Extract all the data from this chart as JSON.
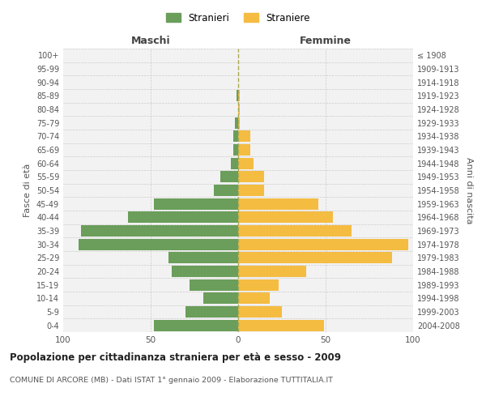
{
  "age_groups": [
    "0-4",
    "5-9",
    "10-14",
    "15-19",
    "20-24",
    "25-29",
    "30-34",
    "35-39",
    "40-44",
    "45-49",
    "50-54",
    "55-59",
    "60-64",
    "65-69",
    "70-74",
    "75-79",
    "80-84",
    "85-89",
    "90-94",
    "95-99",
    "100+"
  ],
  "birth_years": [
    "2004-2008",
    "1999-2003",
    "1994-1998",
    "1989-1993",
    "1984-1988",
    "1979-1983",
    "1974-1978",
    "1969-1973",
    "1964-1968",
    "1959-1963",
    "1954-1958",
    "1949-1953",
    "1944-1948",
    "1939-1943",
    "1934-1938",
    "1929-1933",
    "1924-1928",
    "1919-1923",
    "1914-1918",
    "1909-1913",
    "≤ 1908"
  ],
  "males": [
    48,
    30,
    20,
    28,
    38,
    40,
    91,
    90,
    63,
    48,
    14,
    10,
    4,
    3,
    3,
    2,
    0,
    1,
    0,
    0,
    0
  ],
  "females": [
    49,
    25,
    18,
    23,
    39,
    88,
    97,
    65,
    54,
    46,
    15,
    15,
    9,
    7,
    7,
    1,
    1,
    1,
    0,
    0,
    0
  ],
  "male_color": "#6a9e5a",
  "female_color": "#f5bc42",
  "background_color": "#f2f2f2",
  "grid_color": "#cccccc",
  "title": "Popolazione per cittadinanza straniera per età e sesso - 2009",
  "subtitle": "COMUNE DI ARCORE (MB) - Dati ISTAT 1° gennaio 2009 - Elaborazione TUTTITALIA.IT",
  "xlabel_left": "Maschi",
  "xlabel_right": "Femmine",
  "ylabel_left": "Fasce di età",
  "ylabel_right": "Anni di nascita",
  "legend_male": "Stranieri",
  "legend_female": "Straniere",
  "xlim": 100,
  "bar_height": 0.85
}
